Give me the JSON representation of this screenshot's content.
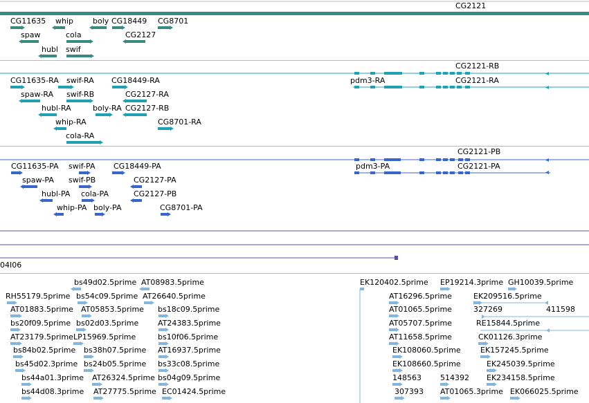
{
  "colors": {
    "gene": "#3a8a82",
    "transcript_ra": "#1fa0b4",
    "transcript_pa": "#3566c8",
    "clone": "#5b4ea0",
    "est": "#82b6dc",
    "separator": "#b8b8b8"
  },
  "tracks": {
    "genes": [
      "CG2121",
      "CG11635",
      "whip",
      "boly",
      "CG18449",
      "CG8701",
      "spaw",
      "cola",
      "CG2127",
      "hubl",
      "swif"
    ],
    "ra": [
      "CG2121-RB",
      "CG11635-RA",
      "swif-RA",
      "CG18449-RA",
      "pdm3-RA",
      "CG2121-RA",
      "spaw-RA",
      "swif-RB",
      "CG2127-RA",
      "hubl-RA",
      "boly-RA",
      "CG2127-RB",
      "whip-RA",
      "CG8701-RA",
      "cola-RA"
    ],
    "pa": [
      "CG2121-PB",
      "CG11635-PA",
      "swif-PA",
      "CG18449-PA",
      "pdm3-PA",
      "CG2121-PA",
      "spaw-PA",
      "swif-PB",
      "CG2127-PA",
      "hubl-PA",
      "cola-PA",
      "CG2127-PB",
      "whip-PA",
      "boly-PA",
      "CG8701-PA"
    ],
    "clone": [
      "04I06"
    ],
    "est": [
      "bs49d02.5prime",
      "AT08983.5prime",
      "EK120402.5prime",
      "EP19214.3prime",
      "GH10039.5prime",
      "RH55179.5prime",
      "bs54c09.5prime",
      "AT26640.5prime",
      "AT16296.5prime",
      "EK209516.5prime",
      "AT01883.5prime",
      "AT05853.5prime",
      "bs18c09.5prime",
      "AT01065.5prime",
      "327269",
      "411598",
      "bs20f09.5prime",
      "bs02d03.5prime",
      "AT24383.5prime",
      "AT05707.5prime",
      "RE15844.5prime",
      "AT23179.5prime",
      "LP15969.5prime",
      "bs10f06.5prime",
      "AT11658.5prime",
      "CK01126.3prime",
      "bs84b02.5prime",
      "bs38h07.5prime",
      "AT16937.5prime",
      "EK108060.5prime",
      "EK157245.5prime",
      "bs45d02.3prime",
      "bs24b05.5prime",
      "bs33c08.5prime",
      "EK108660.5prime",
      "EK245039.5prime",
      "bs44a01.3prime",
      "AT26324.5prime",
      "bs04g09.5prime",
      "148563",
      "514392",
      "EK234158.5prime",
      "bs44d08.3prime",
      "AT27775.5prime",
      "EC01424.5prime",
      "307393",
      "AT01065.3prime",
      "EK066025.5prime"
    ]
  }
}
